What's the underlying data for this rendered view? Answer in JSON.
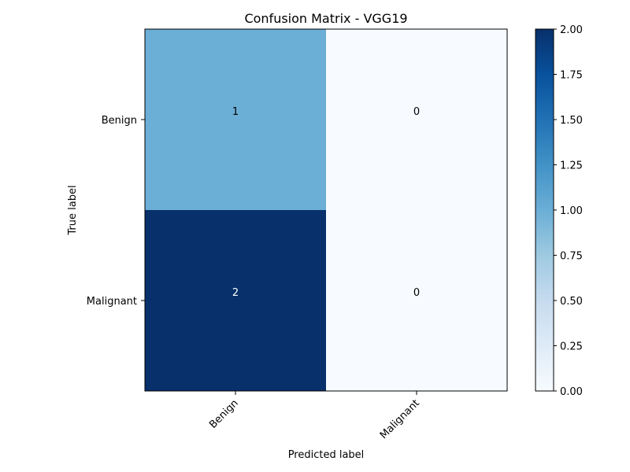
{
  "chart_data": {
    "type": "heatmap",
    "title": "Confusion Matrix - VGG19",
    "xlabel": "Predicted label",
    "ylabel": "True label",
    "x_categories": [
      "Benign",
      "Malignant"
    ],
    "y_categories": [
      "Benign",
      "Malignant"
    ],
    "values": [
      [
        1,
        0
      ],
      [
        2,
        0
      ]
    ],
    "colormap": "Blues",
    "color_range": [
      0,
      2
    ],
    "colorbar": {
      "ticks": [
        "0.00",
        "0.25",
        "0.50",
        "0.75",
        "1.00",
        "1.25",
        "1.50",
        "1.75",
        "2.00"
      ]
    },
    "grid": false,
    "text_colors": {
      "dark_cell": "#ffffff",
      "light_cell": "#000000"
    }
  }
}
